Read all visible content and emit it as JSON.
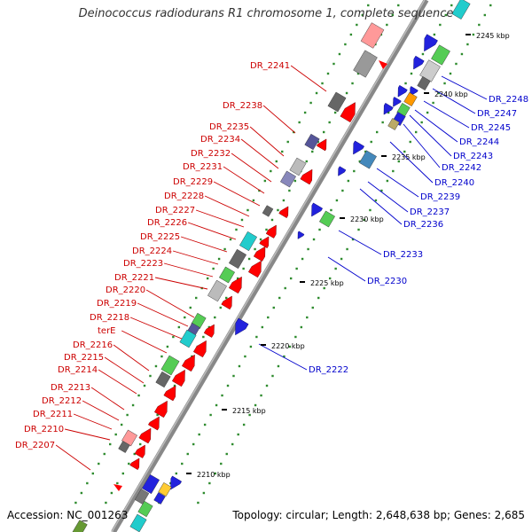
{
  "title": "Deinococcus radiodurans R1 chromosome 1, complete sequence",
  "accession_text": "Accession: NC_001263",
  "topology_text": "Topology: circular; Length: 2,648,638 bp; Genes: 2,685",
  "colors": {
    "backbone": "#888888",
    "forward_label": "#cc0000",
    "reverse_label": "#0000cc",
    "tick_dots": "#2e8b2e"
  },
  "scale_labels": [
    "2210 kbp",
    "2215 kbp",
    "2220 kbp",
    "2225 kbp",
    "2230 kbp",
    "2235 kbp",
    "2240 kbp",
    "2245 kbp"
  ],
  "forward_gene_labels": [
    "DR_2241",
    "DR_2238",
    "DR_2235",
    "DR_2234",
    "DR_2232",
    "DR_2231",
    "DR_2229",
    "DR_2228",
    "DR_2227",
    "DR_2226",
    "DR_2225",
    "DR_2224",
    "DR_2223",
    "DR_2221",
    "DR_2220",
    "DR_2219",
    "DR_2218",
    "terE",
    "DR_2216",
    "DR_2215",
    "DR_2214",
    "DR_2213",
    "DR_2212",
    "DR_2211",
    "DR_2210",
    "DR_2207"
  ],
  "reverse_gene_labels": [
    "DR_2248",
    "DR_2247",
    "DR_2245",
    "DR_2244",
    "DR_2243",
    "DR_2242",
    "DR_2240",
    "DR_2239",
    "DR_2237",
    "DR_2236",
    "DR_2233",
    "DR_2230",
    "DR_2222"
  ]
}
